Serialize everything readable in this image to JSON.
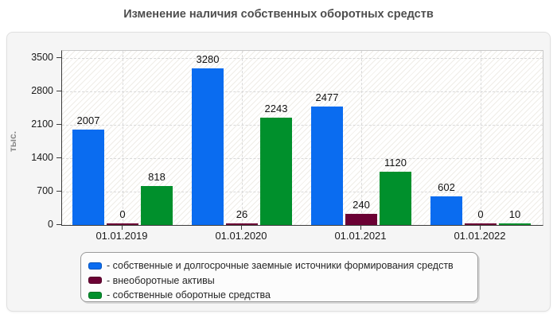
{
  "title": "Изменение наличия собственных оборотных средств",
  "chart_data": {
    "type": "bar",
    "categories": [
      "01.01.2019",
      "01.01.2020",
      "01.01.2021",
      "01.01.2022"
    ],
    "series": [
      {
        "name": "собственные и долгосрочные заемные источники формирования средств",
        "legend_label": "- собственные и долгосрочные заемные источники формирования средств",
        "color": "#0a6cf0",
        "values": [
          2007,
          3280,
          2477,
          602
        ]
      },
      {
        "name": "внеоборотные активы",
        "legend_label": "- внеоборотные активы",
        "color": "#6b0134",
        "values": [
          0,
          26,
          240,
          0
        ]
      },
      {
        "name": "собственные оборотные средства",
        "legend_label": "- собственные оборотные средства",
        "color": "#00902c",
        "values": [
          818,
          2243,
          1120,
          10
        ]
      }
    ],
    "title": "Изменение наличия собственных оборотных средств",
    "xlabel": "",
    "ylabel": "тыс.",
    "ylim": [
      0,
      3500
    ],
    "y_ticks": [
      0,
      700,
      1400,
      2100,
      2800,
      3500
    ],
    "grid": true,
    "value_labels": true,
    "legend_position": "bottom"
  },
  "colors": {
    "title_text": "#4e4e4e",
    "panel_bg": "#f5f5f5",
    "plot_bg": "#ffffff",
    "grid_line": "#d9d9d9",
    "axis_line": "#3c3c3c",
    "tick_text": "#1a1a1a",
    "y_axis_title_text": "#8a8a8a",
    "legend_bg": "#fcfcfc",
    "legend_border": "#9a9a9a",
    "bar_blue": "#0a6cf0",
    "bar_maroon": "#6b0134",
    "bar_green": "#00902c"
  }
}
